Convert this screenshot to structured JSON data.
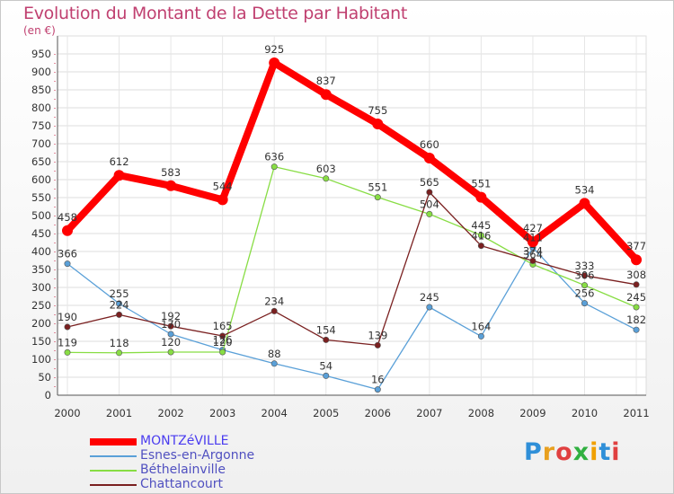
{
  "title": "Evolution du Montant de la Dette par Habitant",
  "unit": "(en €)",
  "logo": "Proxiti",
  "chart_data": {
    "type": "line",
    "title": "Evolution du Montant de la Dette par Habitant",
    "ylabel": "(en €)",
    "xlabel": "",
    "ylim": [
      0,
      950
    ],
    "yticks": [
      0,
      50,
      100,
      150,
      200,
      250,
      300,
      350,
      400,
      450,
      500,
      550,
      600,
      650,
      700,
      750,
      800,
      850,
      900,
      950
    ],
    "grid": true,
    "legend_position": "bottom-left",
    "categories": [
      "2000",
      "2001",
      "2002",
      "2003",
      "2004",
      "2005",
      "2006",
      "2007",
      "2008",
      "2009",
      "2010",
      "2011"
    ],
    "series": [
      {
        "name": "MONTZéVILLE",
        "color": "#ff0000",
        "values": [
          458,
          612,
          583,
          544,
          925,
          837,
          755,
          660,
          551,
          427,
          534,
          377
        ]
      },
      {
        "name": "Esnes-en-Argonne",
        "color": "#5aa0d8",
        "values": [
          366,
          255,
          170,
          126,
          88,
          54,
          16,
          245,
          164,
          411,
          256,
          182
        ]
      },
      {
        "name": "Béthelainville",
        "color": "#88dd44",
        "values": [
          119,
          118,
          120,
          120,
          636,
          603,
          551,
          504,
          445,
          364,
          306,
          245
        ]
      },
      {
        "name": "Chattancourt",
        "color": "#7a2020",
        "values": [
          190,
          224,
          192,
          165,
          234,
          154,
          139,
          565,
          416,
          374,
          333,
          308
        ]
      }
    ]
  }
}
